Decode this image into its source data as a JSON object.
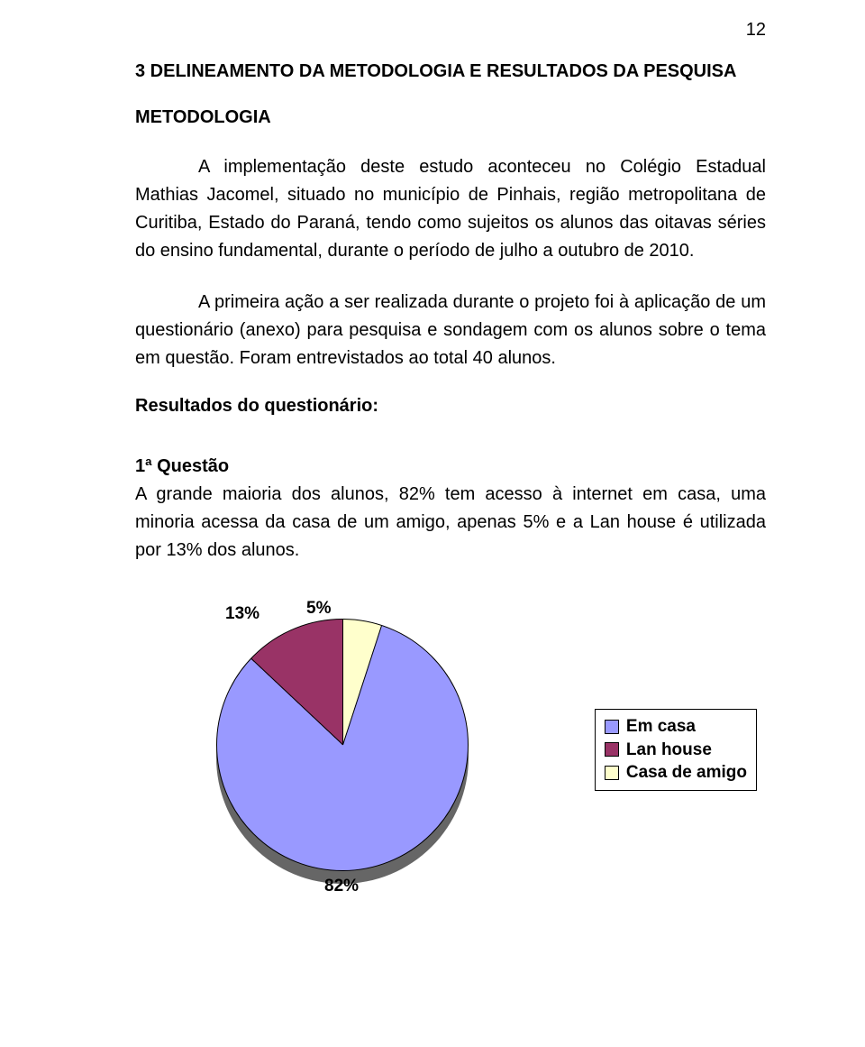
{
  "page_number": "12",
  "heading": "3 DELINEAMENTO DA METODOLOGIA E RESULTADOS DA PESQUISA",
  "subheading": "METODOLOGIA",
  "paragraph1": "A implementação deste estudo aconteceu no Colégio Estadual Mathias Jacomel, situado no município de Pinhais, região metropolitana de Curitiba, Estado do Paraná, tendo como sujeitos os alunos das oitavas séries do ensino fundamental, durante o período de julho a outubro de 2010.",
  "paragraph2": "A primeira ação a ser realizada durante o projeto foi à aplicação de um questionário (anexo) para pesquisa e sondagem com os alunos sobre o tema em questão. Foram entrevistados ao total 40 alunos.",
  "results_heading": "Resultados do questionário:",
  "question_heading": "1ª Questão",
  "question_text": "A grande maioria dos alunos, 82% tem acesso à internet em casa, uma minoria acessa da casa de um amigo, apenas 5% e a Lan house é utilizada por 13% dos alunos.",
  "chart": {
    "type": "pie",
    "slices": [
      {
        "label": "Em casa",
        "value": 82,
        "pct_text": "82%",
        "color": "#9999ff"
      },
      {
        "label": "Lan house",
        "value": 13,
        "pct_text": "13%",
        "color": "#993366"
      },
      {
        "label": "Casa de amigo",
        "value": 5,
        "pct_text": "5%",
        "color": "#ffffcc"
      }
    ],
    "background_color": "#ffffff",
    "shadow_color": "#666666",
    "border_color": "#000000",
    "label_fontsize": 19,
    "legend_fontsize": 19,
    "colors": [
      "#9999ff",
      "#993366",
      "#ffffcc"
    ]
  }
}
